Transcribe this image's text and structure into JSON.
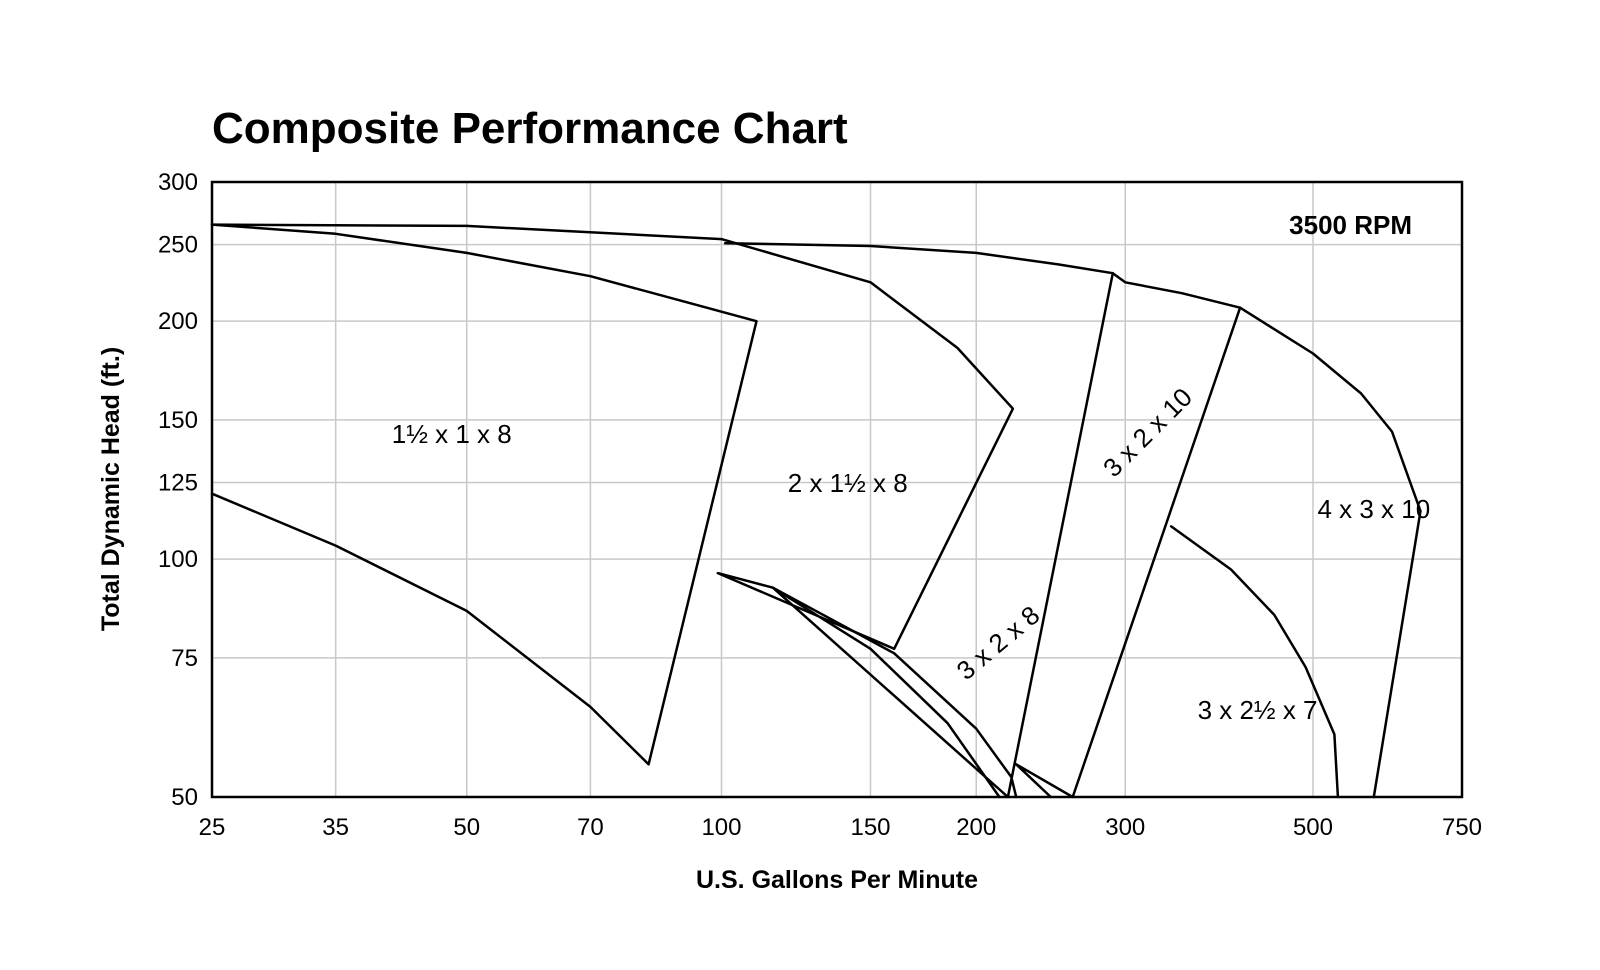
{
  "chart_data": {
    "type": "line",
    "title": "Composite Performance Chart",
    "xlabel": "U.S. Gallons Per Minute",
    "ylabel": "Total Dynamic Head (ft.)",
    "annotation": "3500 RPM",
    "x_scale": "log",
    "y_scale": "log",
    "xlim": [
      25,
      750
    ],
    "ylim": [
      50,
      300
    ],
    "grid": true,
    "x_ticks": [
      25,
      35,
      50,
      70,
      100,
      150,
      200,
      300,
      500,
      750
    ],
    "y_ticks": [
      50,
      75,
      100,
      125,
      150,
      200,
      250,
      300
    ],
    "regions": [
      {
        "label": "1½ x 1 x 8",
        "label_at": [
          48,
          143
        ],
        "label_rotation": 0,
        "boundary": [
          [
            25,
            265
          ],
          [
            35,
            258
          ],
          [
            50,
            244
          ],
          [
            70,
            228
          ],
          [
            90,
            212
          ],
          [
            110,
            200
          ],
          [
            82,
            55
          ],
          [
            70,
            65
          ],
          [
            50,
            86
          ],
          [
            35,
            104
          ],
          [
            25,
            121
          ]
        ]
      },
      {
        "label": "2 x 1½ x 8",
        "label_at": [
          141,
          124
        ],
        "label_rotation": 0,
        "boundary": [
          [
            25,
            265
          ],
          [
            50,
            264
          ],
          [
            100,
            254
          ],
          [
            150,
            224
          ],
          [
            190,
            185
          ],
          [
            221,
            155
          ],
          [
            160,
            77
          ],
          [
            99,
            96
          ],
          [
            115,
            92
          ],
          [
            150,
            77
          ],
          [
            185,
            62
          ],
          [
            213,
            50
          ]
        ]
      },
      {
        "label": "3 x 2 x 8",
        "label_at": [
          213,
          78
        ],
        "label_rotation": -40,
        "boundary": [
          [
            101,
            251
          ],
          [
            150,
            249
          ],
          [
            200,
            244
          ],
          [
            250,
            236
          ],
          [
            290,
            230
          ],
          [
            218,
            50
          ],
          [
            115,
            92
          ],
          [
            160,
            76
          ],
          [
            200,
            61
          ],
          [
            220,
            53
          ],
          [
            223,
            50
          ]
        ]
      },
      {
        "label": "3 x 2 x 10",
        "label_at": [
          320,
          144
        ],
        "label_rotation": -45,
        "boundary": [
          [
            290,
            230
          ],
          [
            300,
            224
          ],
          [
            350,
            217
          ],
          [
            410,
            208
          ],
          [
            260,
            50
          ],
          [
            223,
            55
          ],
          [
            245,
            50
          ]
        ]
      },
      {
        "label": "3 x 2½ x 7",
        "label_at": [
          430,
          64
        ],
        "label_rotation": 0,
        "boundary": [
          [
            340,
            110
          ],
          [
            400,
            97
          ],
          [
            450,
            85
          ],
          [
            490,
            73
          ],
          [
            530,
            60
          ],
          [
            535,
            50
          ]
        ]
      },
      {
        "label": "4 x 3 x 10",
        "label_at": [
          590,
          115
        ],
        "label_rotation": 0,
        "boundary": [
          [
            410,
            208
          ],
          [
            500,
            182
          ],
          [
            570,
            162
          ],
          [
            620,
            145
          ],
          [
            670,
            115
          ],
          [
            590,
            50
          ]
        ]
      }
    ]
  }
}
